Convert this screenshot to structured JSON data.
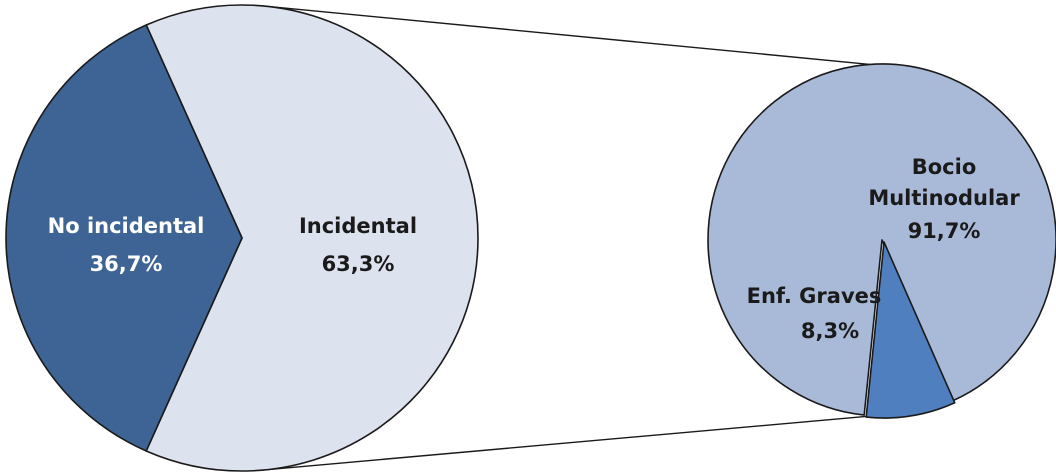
{
  "chart_data": {
    "type": "pie",
    "variant": "pie-of-pie",
    "main_pie": {
      "slices": [
        {
          "label": "No incidental",
          "value": 36.7,
          "value_label": "36,7%",
          "color": "#3d6494"
        },
        {
          "label": "Incidental",
          "value": 63.3,
          "value_label": "63,3%",
          "color": "#dde3ee"
        }
      ]
    },
    "secondary_pie": {
      "expands": "Incidental",
      "slices": [
        {
          "label_lines": [
            "Bocio",
            "Multinodular"
          ],
          "value": 91.7,
          "value_label": "91,7%",
          "color": "#a9bad9"
        },
        {
          "label_lines": [
            "Enf. Graves"
          ],
          "value": 8.3,
          "value_label": "8,3%",
          "color": "#4f7fbf"
        }
      ]
    },
    "legend": "none",
    "grid": false
  }
}
